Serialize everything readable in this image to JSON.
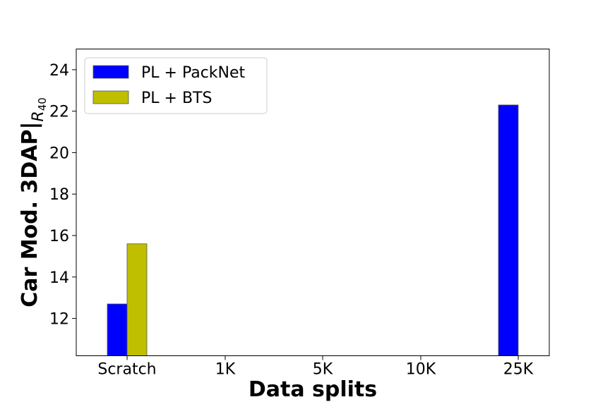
{
  "chart_data": {
    "type": "bar",
    "categories": [
      "Scratch",
      "1K",
      "5K",
      "10K",
      "25K"
    ],
    "series": [
      {
        "name": "PL + PackNet",
        "color": "#0000ff",
        "values": [
          12.7,
          null,
          null,
          null,
          22.3
        ]
      },
      {
        "name": "PL + BTS",
        "color": "#bfbf00",
        "values": [
          15.6,
          null,
          null,
          null,
          null
        ]
      }
    ],
    "xlabel": "Data splits",
    "ylabel": {
      "main": "Car Mod. 3DAP|",
      "sub_base": "R",
      "sub_index": "40"
    },
    "ylim": [
      10.2,
      25
    ],
    "yticks": [
      12,
      14,
      16,
      18,
      20,
      22,
      24
    ],
    "grid": false,
    "legend_position": "top-left"
  }
}
